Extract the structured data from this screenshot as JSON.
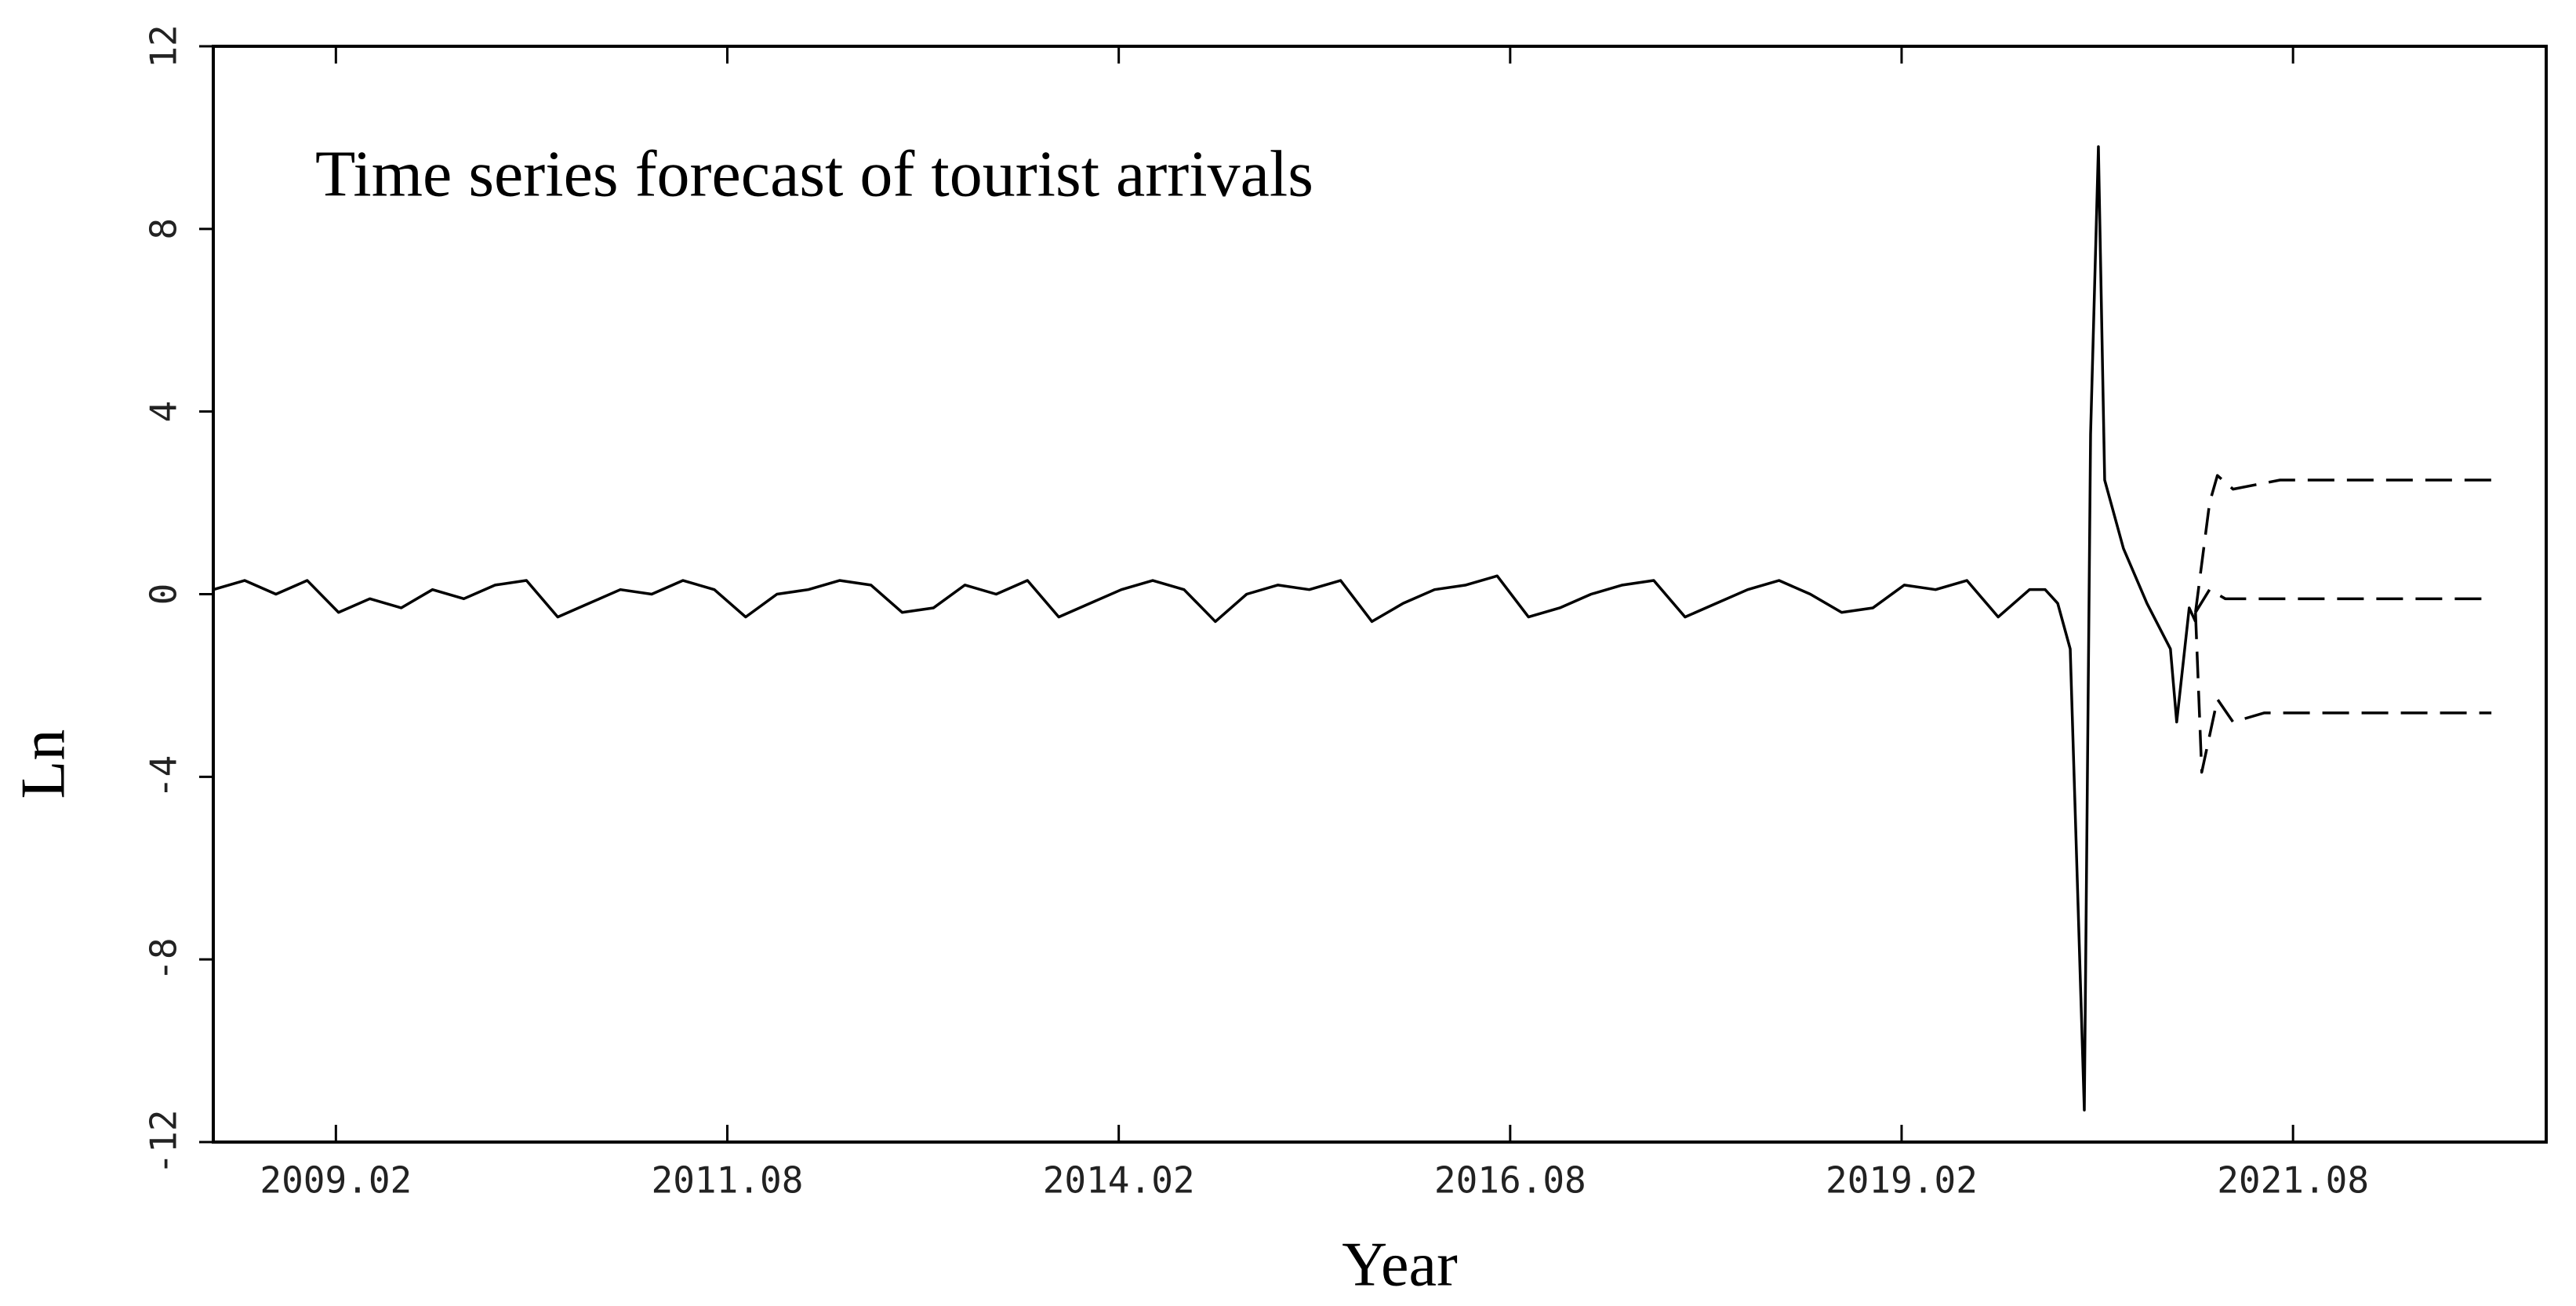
{
  "chart_data": {
    "type": "line",
    "title": "Time series forecast of tourist arrivals",
    "xlabel": "Year",
    "ylabel": "Ln",
    "xlim": [
      2008.3,
      2023.2
    ],
    "xticks": [
      {
        "value": 2009.083,
        "label": "2009.02"
      },
      {
        "value": 2011.583,
        "label": "2011.08"
      },
      {
        "value": 2014.083,
        "label": "2014.02"
      },
      {
        "value": 2016.583,
        "label": "2016.08"
      },
      {
        "value": 2019.083,
        "label": "2019.02"
      },
      {
        "value": 2021.583,
        "label": "2021.08"
      }
    ],
    "ylim": [
      -12,
      12
    ],
    "yticks": [
      -12,
      -8,
      -4,
      0,
      4,
      8,
      12
    ],
    "series": [
      {
        "color": "#000000",
        "style": "solid",
        "x": [
          2008.3,
          2008.5,
          2008.7,
          2008.9,
          2009.1,
          2009.3,
          2009.5,
          2009.7,
          2009.9,
          2010.1,
          2010.3,
          2010.5,
          2010.7,
          2010.9,
          2011.1,
          2011.3,
          2011.5,
          2011.7,
          2011.9,
          2012.1,
          2012.3,
          2012.5,
          2012.7,
          2012.9,
          2013.1,
          2013.3,
          2013.5,
          2013.7,
          2013.9,
          2014.1,
          2014.3,
          2014.5,
          2014.7,
          2014.9,
          2015.1,
          2015.3,
          2015.5,
          2015.7,
          2015.9,
          2016.1,
          2016.3,
          2016.5,
          2016.7,
          2016.9,
          2017.1,
          2017.3,
          2017.5,
          2017.7,
          2017.9,
          2018.1,
          2018.3,
          2018.5,
          2018.7,
          2018.9,
          2019.1,
          2019.3,
          2019.5,
          2019.7,
          2019.9,
          2020.0,
          2020.08,
          2020.16,
          2020.25,
          2020.29,
          2020.34,
          2020.38,
          2020.5,
          2020.65,
          2020.8,
          2020.84,
          2020.92,
          2020.96
        ],
        "values": [
          0.1,
          0.3,
          0.0,
          0.3,
          -0.4,
          -0.1,
          -0.3,
          0.1,
          -0.1,
          0.2,
          0.3,
          -0.5,
          -0.2,
          0.1,
          0.0,
          0.3,
          0.1,
          -0.5,
          0.0,
          0.1,
          0.3,
          0.2,
          -0.4,
          -0.3,
          0.2,
          0.0,
          0.3,
          -0.5,
          -0.2,
          0.1,
          0.3,
          0.1,
          -0.6,
          0.0,
          0.2,
          0.1,
          0.3,
          -0.6,
          -0.2,
          0.1,
          0.2,
          0.4,
          -0.5,
          -0.3,
          0.0,
          0.2,
          0.3,
          -0.5,
          -0.2,
          0.1,
          0.3,
          0.0,
          -0.4,
          -0.3,
          0.2,
          0.1,
          0.3,
          -0.5,
          0.1,
          0.1,
          -0.2,
          -1.2,
          -11.3,
          3.5,
          9.8,
          2.5,
          1.0,
          -0.2,
          -1.2,
          -2.8,
          -0.3,
          -0.6
        ]
      },
      {
        "color": "#000000",
        "style": "dashed",
        "x": [
          2020.96,
          2021.05,
          2021.15,
          2022.85
        ],
        "values": [
          -0.4,
          0.1,
          -0.1,
          -0.1
        ]
      },
      {
        "color": "#000000",
        "style": "dashed",
        "x": [
          2020.96,
          2021.05,
          2021.1,
          2021.2,
          2021.5,
          2022.85
        ],
        "values": [
          -0.4,
          2.0,
          2.6,
          2.3,
          2.5,
          2.5
        ]
      },
      {
        "color": "#000000",
        "style": "dashed",
        "x": [
          2020.96,
          2021.0,
          2021.1,
          2021.2,
          2021.4,
          2022.85
        ],
        "values": [
          -0.4,
          -3.9,
          -2.3,
          -2.8,
          -2.6,
          -2.6
        ]
      }
    ]
  }
}
